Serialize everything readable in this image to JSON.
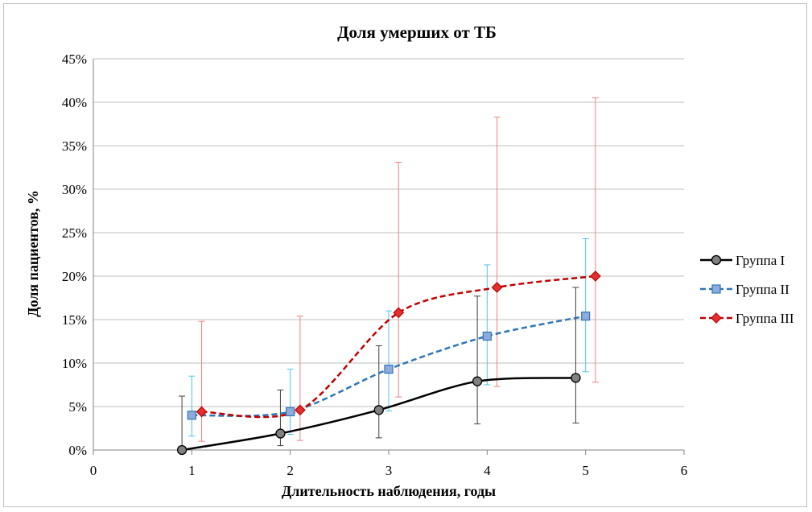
{
  "chart_data": {
    "type": "line",
    "title": "Доля умерших от ТБ",
    "xlabel": "Длительность наблюдения, годы",
    "ylabel": "Доля пациентов, %",
    "xlim": [
      0,
      6
    ],
    "ylim": [
      0,
      45
    ],
    "x_ticks": [
      0,
      1,
      2,
      3,
      4,
      5,
      6
    ],
    "y_ticks": [
      0,
      5,
      10,
      15,
      20,
      25,
      30,
      35,
      40,
      45
    ],
    "y_tick_labels": [
      "0%",
      "5%",
      "10%",
      "15%",
      "20%",
      "25%",
      "30%",
      "35%",
      "40%",
      "45%"
    ],
    "grid": "horizontal",
    "legend_position": "right",
    "series": [
      {
        "name": "Группа I",
        "color": "#000000",
        "line_style": "solid",
        "marker": "circle",
        "marker_color": "#808080",
        "error_bar_color": "#404040",
        "x": [
          0.9,
          1.9,
          2.9,
          3.9,
          4.9
        ],
        "y": [
          0,
          1.9,
          4.6,
          7.9,
          8.3
        ],
        "y_low": [
          0,
          0.5,
          1.4,
          3.0,
          3.1
        ],
        "y_high": [
          6.2,
          6.9,
          12.0,
          17.7,
          18.7
        ]
      },
      {
        "name": "Группа II",
        "color": "#2e75b6",
        "line_style": "dashed",
        "marker": "square",
        "marker_color": "#8faadc",
        "error_bar_color": "#4fc3e8",
        "x": [
          1.0,
          2.0,
          3.0,
          4.0,
          5.0
        ],
        "y": [
          4.0,
          4.4,
          9.3,
          13.1,
          15.4
        ],
        "y_low": [
          1.6,
          1.8,
          4.5,
          7.5,
          9.0
        ],
        "y_high": [
          8.5,
          9.3,
          16.0,
          21.3,
          24.3
        ]
      },
      {
        "name": "Группа III",
        "color": "#c00000",
        "line_style": "dashed",
        "marker": "diamond",
        "marker_color": "#e03030",
        "error_bar_color": "#f08080",
        "x": [
          1.1,
          2.1,
          3.1,
          4.1,
          5.1
        ],
        "y": [
          4.4,
          4.6,
          15.8,
          18.7,
          20.0
        ],
        "y_low": [
          1.0,
          1.1,
          6.1,
          7.3,
          7.8
        ],
        "y_high": [
          14.8,
          15.4,
          33.1,
          38.3,
          40.5
        ]
      }
    ]
  }
}
